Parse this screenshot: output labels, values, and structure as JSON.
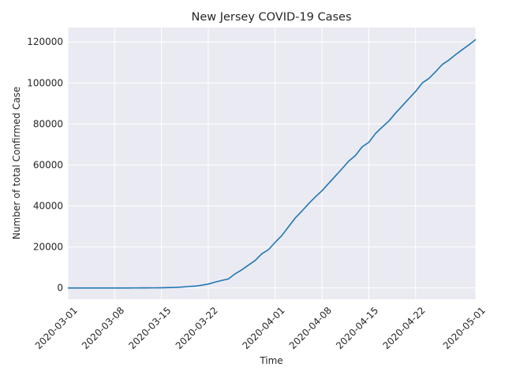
{
  "chart_data": {
    "type": "line",
    "title": "New Jersey COVID-19 Cases",
    "xlabel": "Time",
    "ylabel": "Number of total Confirmed Case",
    "x_ticks": [
      "2020-03-01",
      "2020-03-08",
      "2020-03-15",
      "2020-03-22",
      "2020-04-01",
      "2020-04-08",
      "2020-04-15",
      "2020-04-22",
      "2020-05-01"
    ],
    "y_ticks": [
      "0",
      "20000",
      "40000",
      "60000",
      "80000",
      "100000",
      "120000"
    ],
    "xlim": [
      "2020-03-01",
      "2020-05-01"
    ],
    "ylim": [
      -5500,
      127000
    ],
    "grid": true,
    "background": "#eaeaf2",
    "series": [
      {
        "color": "#1f77b4",
        "x": [
          "2020-03-01",
          "2020-03-02",
          "2020-03-03",
          "2020-03-04",
          "2020-03-05",
          "2020-03-06",
          "2020-03-07",
          "2020-03-08",
          "2020-03-09",
          "2020-03-10",
          "2020-03-11",
          "2020-03-12",
          "2020-03-13",
          "2020-03-14",
          "2020-03-15",
          "2020-03-16",
          "2020-03-17",
          "2020-03-18",
          "2020-03-19",
          "2020-03-20",
          "2020-03-21",
          "2020-03-22",
          "2020-03-23",
          "2020-03-24",
          "2020-03-25",
          "2020-03-26",
          "2020-03-27",
          "2020-03-28",
          "2020-03-29",
          "2020-03-30",
          "2020-03-31",
          "2020-04-01",
          "2020-04-02",
          "2020-04-03",
          "2020-04-04",
          "2020-04-05",
          "2020-04-06",
          "2020-04-07",
          "2020-04-08",
          "2020-04-09",
          "2020-04-10",
          "2020-04-11",
          "2020-04-12",
          "2020-04-13",
          "2020-04-14",
          "2020-04-15",
          "2020-04-16",
          "2020-04-17",
          "2020-04-18",
          "2020-04-19",
          "2020-04-20",
          "2020-04-21",
          "2020-04-22",
          "2020-04-23",
          "2020-04-24",
          "2020-04-25",
          "2020-04-26",
          "2020-04-27",
          "2020-04-28",
          "2020-04-29",
          "2020-04-30",
          "2020-05-01"
        ],
        "y": [
          0,
          0,
          0,
          0,
          1,
          1,
          4,
          6,
          11,
          15,
          23,
          29,
          50,
          69,
          98,
          178,
          267,
          427,
          742,
          890,
          1327,
          1914,
          2844,
          3675,
          4402,
          6876,
          8825,
          11124,
          13386,
          16636,
          18696,
          22255,
          25590,
          29895,
          34124,
          37505,
          41090,
          44416,
          47437,
          51027,
          54588,
          58151,
          61850,
          64584,
          68824,
          71030,
          75317,
          78467,
          81420,
          85301,
          88806,
          92387,
          95865,
          99989,
          102196,
          105498,
          109038,
          111188,
          113856,
          116264,
          118652,
          121190
        ]
      }
    ]
  }
}
